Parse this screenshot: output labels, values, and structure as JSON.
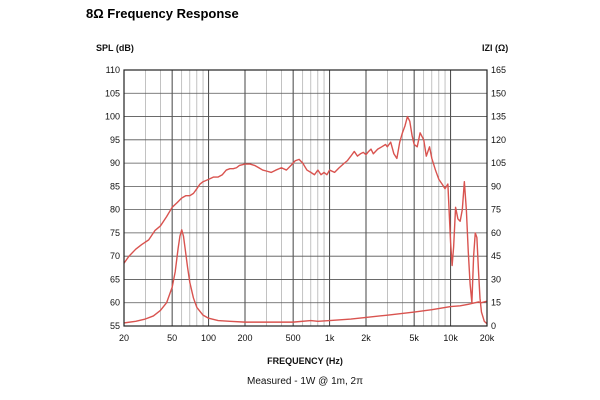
{
  "page": {
    "title": "8Ω Frequency Response"
  },
  "chart_data": {
    "type": "line",
    "title": "8Ω Frequency Response",
    "xlabel": "FREQUENCY (Hz)",
    "subtitle": "Measured - 1W @ 1m, 2π",
    "ylabel_left": "SPL (dB)",
    "ylabel_right": "IZI (Ω)",
    "x_scale": "log",
    "xlim": [
      20,
      20000
    ],
    "ylim_left": [
      55,
      110
    ],
    "ylim_right": [
      0,
      165
    ],
    "grid": true,
    "x_ticks": [
      {
        "v": 20,
        "label": "20"
      },
      {
        "v": 50,
        "label": "50"
      },
      {
        "v": 100,
        "label": "100"
      },
      {
        "v": 200,
        "label": "200"
      },
      {
        "v": 500,
        "label": "500"
      },
      {
        "v": 1000,
        "label": "1k"
      },
      {
        "v": 2000,
        "label": "2k"
      },
      {
        "v": 5000,
        "label": "5k"
      },
      {
        "v": 10000,
        "label": "10k"
      },
      {
        "v": 20000,
        "label": "20k"
      }
    ],
    "y_ticks_left": [
      "110",
      "105",
      "100",
      "95",
      "90",
      "85",
      "80",
      "75",
      "70",
      "65",
      "60",
      "55"
    ],
    "y_ticks_right": [
      "165",
      "150",
      "135",
      "120",
      "105",
      "90",
      "75",
      "60",
      "45",
      "30",
      "15",
      "0"
    ],
    "series": [
      {
        "axis": "left",
        "color": "#d9534f",
        "points": [
          [
            20,
            68.5
          ],
          [
            22,
            70
          ],
          [
            25,
            71.5
          ],
          [
            28,
            72.5
          ],
          [
            32,
            73.5
          ],
          [
            36,
            75.5
          ],
          [
            40,
            76.5
          ],
          [
            45,
            78.5
          ],
          [
            50,
            80.5
          ],
          [
            55,
            81.5
          ],
          [
            60,
            82.5
          ],
          [
            65,
            83
          ],
          [
            70,
            83
          ],
          [
            75,
            83.5
          ],
          [
            80,
            84.5
          ],
          [
            85,
            85.5
          ],
          [
            90,
            86
          ],
          [
            100,
            86.5
          ],
          [
            110,
            87
          ],
          [
            120,
            87
          ],
          [
            130,
            87.5
          ],
          [
            140,
            88.5
          ],
          [
            150,
            88.8
          ],
          [
            160,
            88.8
          ],
          [
            170,
            89
          ],
          [
            180,
            89.5
          ],
          [
            200,
            89.8
          ],
          [
            220,
            89.8
          ],
          [
            240,
            89.5
          ],
          [
            260,
            89
          ],
          [
            280,
            88.5
          ],
          [
            300,
            88.3
          ],
          [
            330,
            88
          ],
          [
            360,
            88.5
          ],
          [
            400,
            89
          ],
          [
            440,
            88.5
          ],
          [
            480,
            89.5
          ],
          [
            520,
            90.5
          ],
          [
            560,
            90.8
          ],
          [
            600,
            90
          ],
          [
            650,
            88.5
          ],
          [
            700,
            88
          ],
          [
            750,
            87.5
          ],
          [
            800,
            88.5
          ],
          [
            850,
            87.5
          ],
          [
            900,
            88
          ],
          [
            950,
            87.5
          ],
          [
            1000,
            88.5
          ],
          [
            1100,
            88
          ],
          [
            1200,
            89
          ],
          [
            1300,
            89.8
          ],
          [
            1400,
            90.5
          ],
          [
            1500,
            91.5
          ],
          [
            1600,
            92.5
          ],
          [
            1700,
            91.5
          ],
          [
            1800,
            92
          ],
          [
            1900,
            92.3
          ],
          [
            2000,
            91.8
          ],
          [
            2100,
            92.5
          ],
          [
            2200,
            93
          ],
          [
            2300,
            92
          ],
          [
            2500,
            93
          ],
          [
            2700,
            93.5
          ],
          [
            2900,
            94
          ],
          [
            3000,
            93.5
          ],
          [
            3200,
            94.5
          ],
          [
            3400,
            92
          ],
          [
            3600,
            91
          ],
          [
            3800,
            94.5
          ],
          [
            4000,
            96.5
          ],
          [
            4200,
            98
          ],
          [
            4400,
            100
          ],
          [
            4600,
            99
          ],
          [
            4800,
            96
          ],
          [
            5000,
            94
          ],
          [
            5300,
            93.5
          ],
          [
            5600,
            96.5
          ],
          [
            6000,
            95
          ],
          [
            6300,
            91.5
          ],
          [
            6700,
            93.5
          ],
          [
            7000,
            91
          ],
          [
            7500,
            88.5
          ],
          [
            8000,
            86.5
          ],
          [
            8500,
            85.5
          ],
          [
            9000,
            84.5
          ],
          [
            9500,
            85.5
          ],
          [
            10000,
            73
          ],
          [
            10300,
            68
          ],
          [
            10600,
            72
          ],
          [
            11000,
            80.5
          ],
          [
            11500,
            78
          ],
          [
            12000,
            77.5
          ],
          [
            12500,
            80
          ],
          [
            13000,
            86
          ],
          [
            13500,
            80
          ],
          [
            14000,
            71
          ],
          [
            14500,
            64
          ],
          [
            15000,
            60
          ],
          [
            15500,
            70
          ],
          [
            16000,
            75
          ],
          [
            16500,
            74
          ],
          [
            17000,
            67
          ],
          [
            17500,
            61
          ],
          [
            18000,
            58
          ],
          [
            19000,
            56
          ],
          [
            20000,
            55.5
          ]
        ]
      },
      {
        "axis": "right",
        "color": "#d9534f",
        "points": [
          [
            20,
            2
          ],
          [
            25,
            3
          ],
          [
            30,
            4.5
          ],
          [
            35,
            6.5
          ],
          [
            40,
            10
          ],
          [
            45,
            15
          ],
          [
            50,
            25
          ],
          [
            53,
            35
          ],
          [
            56,
            50
          ],
          [
            58,
            58
          ],
          [
            60,
            62
          ],
          [
            62,
            58
          ],
          [
            64,
            50
          ],
          [
            67,
            38
          ],
          [
            70,
            28
          ],
          [
            75,
            18
          ],
          [
            80,
            12
          ],
          [
            90,
            7
          ],
          [
            100,
            5
          ],
          [
            120,
            3.5
          ],
          [
            150,
            3
          ],
          [
            200,
            2.5
          ],
          [
            300,
            2.5
          ],
          [
            500,
            2.5
          ],
          [
            700,
            3.5
          ],
          [
            800,
            3
          ],
          [
            1000,
            3.5
          ],
          [
            1500,
            4.5
          ],
          [
            2000,
            5.5
          ],
          [
            3000,
            7
          ],
          [
            5000,
            9
          ],
          [
            7000,
            10.5
          ],
          [
            10000,
            12.5
          ],
          [
            12000,
            13
          ],
          [
            14000,
            14
          ],
          [
            15000,
            14.5
          ],
          [
            16000,
            15
          ],
          [
            17000,
            15.5
          ],
          [
            18000,
            15
          ],
          [
            20000,
            16
          ]
        ]
      }
    ]
  }
}
